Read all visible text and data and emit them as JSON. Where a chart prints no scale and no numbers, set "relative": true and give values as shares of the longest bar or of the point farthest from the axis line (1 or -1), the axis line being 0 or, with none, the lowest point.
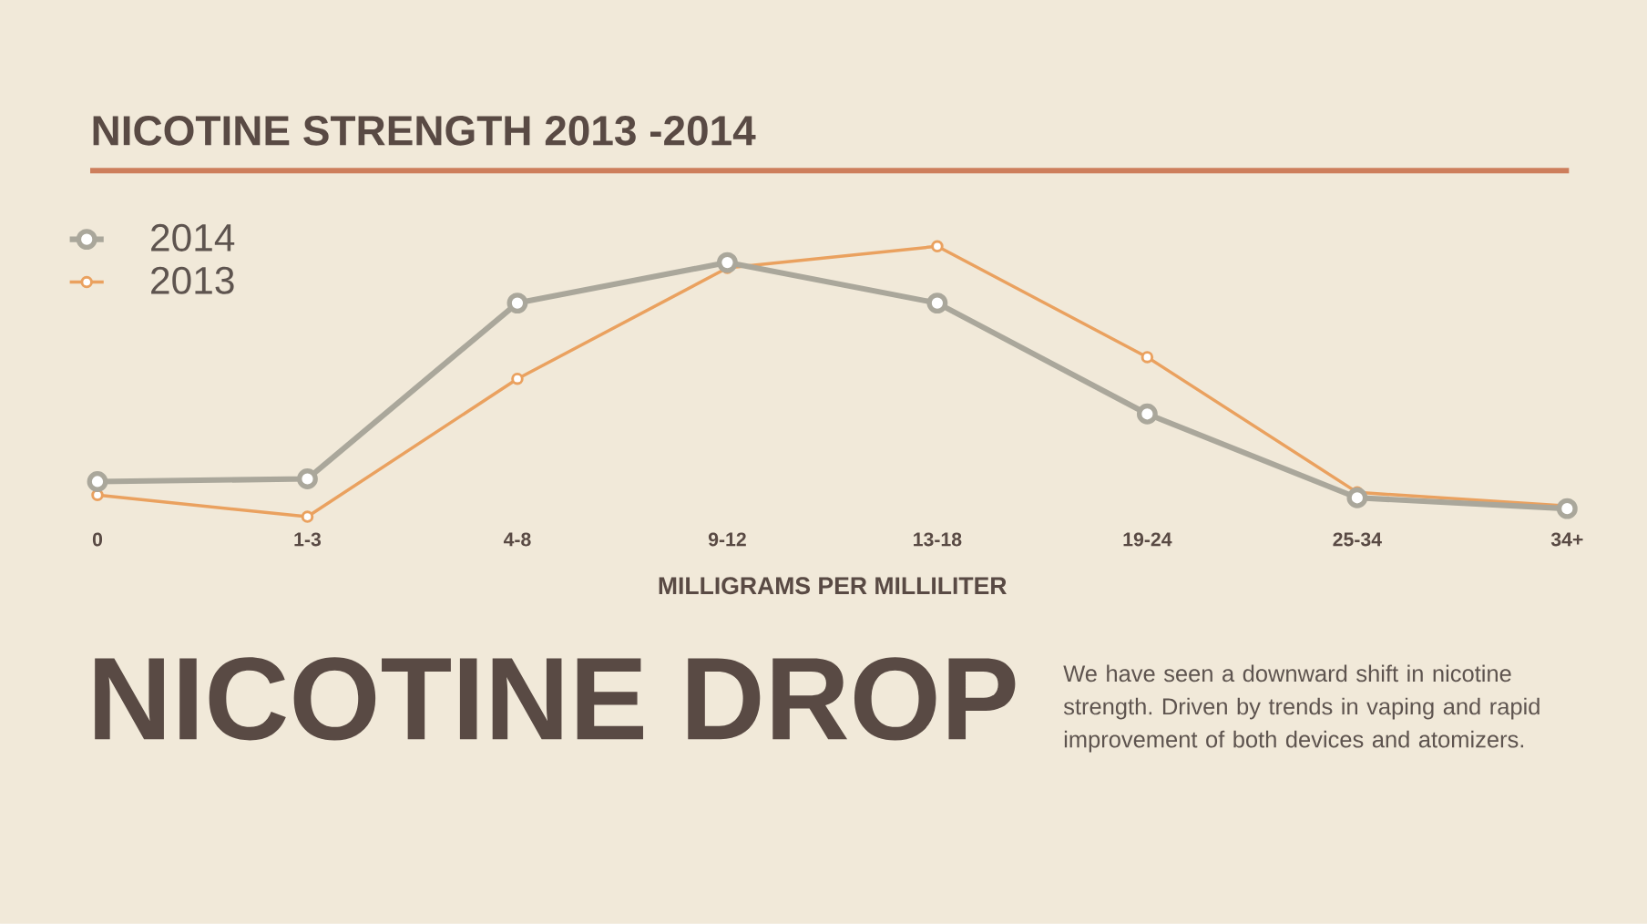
{
  "chart_data": {
    "type": "line",
    "title": "NICOTINE STRENGTH 2013 -2014",
    "subtitle": "NICOTINE DROP",
    "xlabel": "MILLIGRAMS PER MILLILITER",
    "annotations": [
      "We have seen a downward shift in nicotine strength. Driven by trends in vaping and rapid improvement of both devices and atomizers."
    ],
    "categories": [
      "0",
      "1-3",
      "4-8",
      "9-12",
      "13-18",
      "19-24",
      "25-34",
      "34+"
    ],
    "relative": true,
    "series": [
      {
        "name": "2014",
        "color": "#aaa79b",
        "values": [
          0.13,
          0.14,
          0.79,
          0.94,
          0.79,
          0.38,
          0.07,
          0.03
        ]
      },
      {
        "name": "2013",
        "color": "#eaa15f",
        "values": [
          0.08,
          0,
          0.51,
          0.92,
          1,
          0.59,
          0.09,
          0.04
        ]
      }
    ],
    "legend": "top left",
    "marker": "circle"
  }
}
